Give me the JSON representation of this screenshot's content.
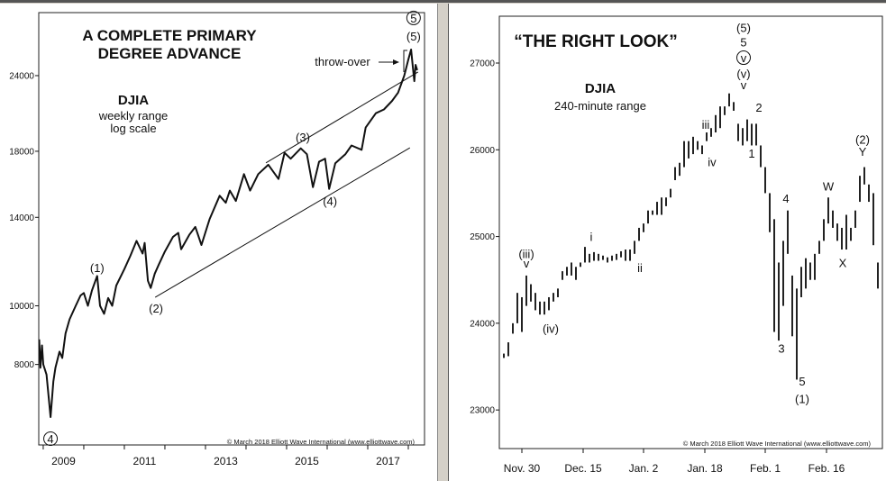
{
  "chart_data": [
    {
      "type": "line",
      "title": "A COMPLETE PRIMARY",
      "title2": "DEGREE ADVANCE",
      "symbol": "DJIA",
      "subtitle1": "weekly range",
      "subtitle2": "log scale",
      "yscale": "log",
      "xlim": [
        2008.89,
        2018.4
      ],
      "ylim": [
        5890,
        30500
      ],
      "yticks": [
        24000,
        18000,
        14000,
        10000,
        8000
      ],
      "ytick_labels": [
        "24000",
        "18000",
        "14000",
        "10000",
        "8000"
      ],
      "xticks": [
        2009,
        2010,
        2011,
        2012,
        2013,
        2014,
        2015,
        2016,
        2017,
        2018
      ],
      "xlabels": [
        {
          "at": 2009.5,
          "label": "2009"
        },
        {
          "at": 2011.5,
          "label": "2011"
        },
        {
          "at": 2013.5,
          "label": "2013"
        },
        {
          "at": 2015.5,
          "label": "2015"
        },
        {
          "at": 2017.5,
          "label": "2017"
        }
      ],
      "series": [
        {
          "name": "DJIA",
          "points": [
            [
              2008.9,
              8800
            ],
            [
              2008.93,
              7900
            ],
            [
              2008.97,
              8600
            ],
            [
              2009.0,
              8000
            ],
            [
              2009.08,
              7700
            ],
            [
              2009.18,
              6550
            ],
            [
              2009.25,
              7500
            ],
            [
              2009.3,
              7900
            ],
            [
              2009.4,
              8400
            ],
            [
              2009.47,
              8200
            ],
            [
              2009.55,
              9000
            ],
            [
              2009.65,
              9500
            ],
            [
              2009.8,
              10000
            ],
            [
              2009.92,
              10400
            ],
            [
              2010.0,
              10500
            ],
            [
              2010.1,
              10000
            ],
            [
              2010.2,
              10600
            ],
            [
              2010.33,
              11200
            ],
            [
              2010.4,
              10000
            ],
            [
              2010.5,
              9700
            ],
            [
              2010.6,
              10300
            ],
            [
              2010.7,
              10000
            ],
            [
              2010.8,
              10800
            ],
            [
              2011.0,
              11500
            ],
            [
              2011.15,
              12100
            ],
            [
              2011.3,
              12800
            ],
            [
              2011.45,
              12200
            ],
            [
              2011.5,
              12700
            ],
            [
              2011.58,
              11000
            ],
            [
              2011.65,
              10700
            ],
            [
              2011.75,
              11300
            ],
            [
              2011.85,
              11700
            ],
            [
              2012.0,
              12300
            ],
            [
              2012.2,
              13000
            ],
            [
              2012.33,
              13200
            ],
            [
              2012.4,
              12400
            ],
            [
              2012.6,
              13100
            ],
            [
              2012.75,
              13500
            ],
            [
              2012.9,
              12600
            ],
            [
              2013.1,
              13900
            ],
            [
              2013.35,
              15200
            ],
            [
              2013.5,
              14800
            ],
            [
              2013.6,
              15500
            ],
            [
              2013.75,
              14900
            ],
            [
              2013.95,
              16500
            ],
            [
              2014.1,
              15500
            ],
            [
              2014.3,
              16500
            ],
            [
              2014.55,
              17100
            ],
            [
              2014.8,
              16200
            ],
            [
              2014.95,
              17900
            ],
            [
              2015.1,
              17500
            ],
            [
              2015.35,
              18200
            ],
            [
              2015.5,
              17800
            ],
            [
              2015.65,
              15700
            ],
            [
              2015.8,
              17300
            ],
            [
              2015.95,
              17500
            ],
            [
              2016.05,
              15600
            ],
            [
              2016.2,
              17200
            ],
            [
              2016.45,
              17800
            ],
            [
              2016.6,
              18400
            ],
            [
              2016.85,
              18100
            ],
            [
              2016.95,
              19700
            ],
            [
              2017.2,
              20800
            ],
            [
              2017.4,
              21100
            ],
            [
              2017.6,
              21800
            ],
            [
              2017.75,
              22500
            ],
            [
              2017.9,
              24000
            ],
            [
              2018.0,
              25500
            ],
            [
              2018.07,
              26500
            ],
            [
              2018.12,
              24500
            ],
            [
              2018.15,
              23500
            ],
            [
              2018.18,
              25000
            ],
            [
              2018.22,
              24500
            ]
          ]
        }
      ],
      "channel_lines": [
        {
          "name": "lower",
          "from": [
            2011.76,
            10330
          ],
          "to": [
            2018.04,
            18240
          ]
        },
        {
          "name": "upper",
          "from": [
            2014.49,
            17220
          ],
          "to": [
            2018.24,
            24330
          ]
        }
      ],
      "annotations": [
        {
          "text": "(1)",
          "x": 2010.33,
          "y": 11370
        },
        {
          "text": "(2)",
          "x": 2011.78,
          "y": 9750
        },
        {
          "text": "(3)",
          "x": 2015.4,
          "y": 18680
        },
        {
          "text": "(4)",
          "x": 2016.07,
          "y": 14650
        },
        {
          "text": "(5)",
          "x": 2018.13,
          "y": 27420
        },
        {
          "text": "5",
          "x": 2018.13,
          "y": 29380,
          "circled": true
        },
        {
          "text": "4",
          "x": 2009.18,
          "y": 5930,
          "circled": true
        }
      ],
      "throw_over_label": "throw-over",
      "copyright": "© March 2018 Elliott Wave International (www.elliottwave.com)"
    },
    {
      "type": "bar",
      "subtype": "range-bars",
      "title": "“THE RIGHT LOOK”",
      "symbol": "DJIA",
      "subtitle1": "240-minute range",
      "yscale": "linear",
      "ylim": [
        22555,
        27540
      ],
      "yticks": [
        27000,
        26000,
        25000,
        24000,
        23000
      ],
      "ytick_labels": [
        "27000",
        "26000",
        "25000",
        "24000",
        "23000"
      ],
      "xticks": [
        {
          "at": 4,
          "label": "Nov. 30"
        },
        {
          "at": 17.6,
          "label": "Dec. 15"
        },
        {
          "at": 31,
          "label": "Jan. 2"
        },
        {
          "at": 44.6,
          "label": "Jan. 18"
        },
        {
          "at": 58,
          "label": "Feb. 1"
        },
        {
          "at": 71.6,
          "label": "Feb. 16"
        }
      ],
      "bars": [
        [
          23600,
          23650
        ],
        [
          23620,
          23780
        ],
        [
          23880,
          24000
        ],
        [
          24000,
          24350
        ],
        [
          23900,
          24300
        ],
        [
          24200,
          24550
        ],
        [
          24250,
          24450
        ],
        [
          24150,
          24350
        ],
        [
          24100,
          24250
        ],
        [
          24100,
          24250
        ],
        [
          24150,
          24300
        ],
        [
          24250,
          24350
        ],
        [
          24300,
          24400
        ],
        [
          24500,
          24600
        ],
        [
          24550,
          24650
        ],
        [
          24550,
          24700
        ],
        [
          24500,
          24650
        ],
        [
          24650,
          24700
        ],
        [
          24700,
          24880
        ],
        [
          24700,
          24800
        ],
        [
          24720,
          24820
        ],
        [
          24720,
          24800
        ],
        [
          24730,
          24780
        ],
        [
          24700,
          24760
        ],
        [
          24720,
          24780
        ],
        [
          24730,
          24800
        ],
        [
          24760,
          24830
        ],
        [
          24720,
          24850
        ],
        [
          24720,
          24850
        ],
        [
          24800,
          24950
        ],
        [
          24950,
          25100
        ],
        [
          25050,
          25150
        ],
        [
          25150,
          25300
        ],
        [
          25250,
          25300
        ],
        [
          25250,
          25400
        ],
        [
          25250,
          25450
        ],
        [
          25350,
          25450
        ],
        [
          25450,
          25550
        ],
        [
          25650,
          25800
        ],
        [
          25700,
          25850
        ],
        [
          25800,
          26100
        ],
        [
          25900,
          26100
        ],
        [
          25950,
          26150
        ],
        [
          26000,
          26100
        ],
        [
          25950,
          26050
        ],
        [
          26100,
          26200
        ],
        [
          26150,
          26250
        ],
        [
          26200,
          26400
        ],
        [
          26250,
          26500
        ],
        [
          26400,
          26500
        ],
        [
          26500,
          26650
        ],
        [
          26450,
          26550
        ],
        [
          26100,
          26300
        ],
        [
          26050,
          26250
        ],
        [
          26100,
          26350
        ],
        [
          26050,
          26300
        ],
        [
          26050,
          26300
        ],
        [
          25800,
          26050
        ],
        [
          25500,
          25800
        ],
        [
          25050,
          25500
        ],
        [
          23900,
          25200
        ],
        [
          23800,
          24700
        ],
        [
          24200,
          24950
        ],
        [
          24800,
          25300
        ],
        [
          23850,
          24550
        ],
        [
          23350,
          24400
        ],
        [
          24300,
          24650
        ],
        [
          24400,
          24750
        ],
        [
          24500,
          24700
        ],
        [
          24500,
          24800
        ],
        [
          24800,
          24950
        ],
        [
          24950,
          25200
        ],
        [
          25150,
          25450
        ],
        [
          25100,
          25300
        ],
        [
          24950,
          25150
        ],
        [
          24850,
          25100
        ],
        [
          24850,
          25250
        ],
        [
          24950,
          25100
        ],
        [
          25100,
          25300
        ],
        [
          25400,
          25700
        ],
        [
          25600,
          25800
        ],
        [
          25400,
          25600
        ],
        [
          24900,
          25500
        ],
        [
          24400,
          24700
        ]
      ],
      "annotations": [
        {
          "text": "(iii)",
          "x": 5,
          "y": 24750
        },
        {
          "text": "v",
          "x": 5,
          "y": 24640
        },
        {
          "text": "(iv)",
          "x": 10.4,
          "y": 23890
        },
        {
          "text": "i",
          "x": 19.4,
          "y": 24950
        },
        {
          "text": "ii",
          "x": 30.2,
          "y": 24590
        },
        {
          "text": "iii",
          "x": 44.8,
          "y": 26240
        },
        {
          "text": "iv",
          "x": 46.2,
          "y": 25810
        },
        {
          "text": "(5)",
          "x": 53.2,
          "y": 27360
        },
        {
          "text": "5",
          "x": 53.2,
          "y": 27190
        },
        {
          "text": "v",
          "x": 53.2,
          "y": 27010,
          "circled": true
        },
        {
          "text": "(v)",
          "x": 53.2,
          "y": 26830
        },
        {
          "text": "v",
          "x": 53.2,
          "y": 26700
        },
        {
          "text": "2",
          "x": 56.6,
          "y": 26440
        },
        {
          "text": "1",
          "x": 55,
          "y": 25910
        },
        {
          "text": "4",
          "x": 62.6,
          "y": 25390
        },
        {
          "text": "3",
          "x": 61.6,
          "y": 23660
        },
        {
          "text": "5",
          "x": 66.2,
          "y": 23280
        },
        {
          "text": "(1)",
          "x": 66.2,
          "y": 23080
        },
        {
          "text": "W",
          "x": 72,
          "y": 25530
        },
        {
          "text": "X",
          "x": 75.2,
          "y": 24650
        },
        {
          "text": "(2)",
          "x": 79.6,
          "y": 26070
        },
        {
          "text": "Y",
          "x": 79.6,
          "y": 25930
        }
      ],
      "copyright": "© March 2018 Elliott Wave International (www.elliottwave.com)"
    }
  ]
}
